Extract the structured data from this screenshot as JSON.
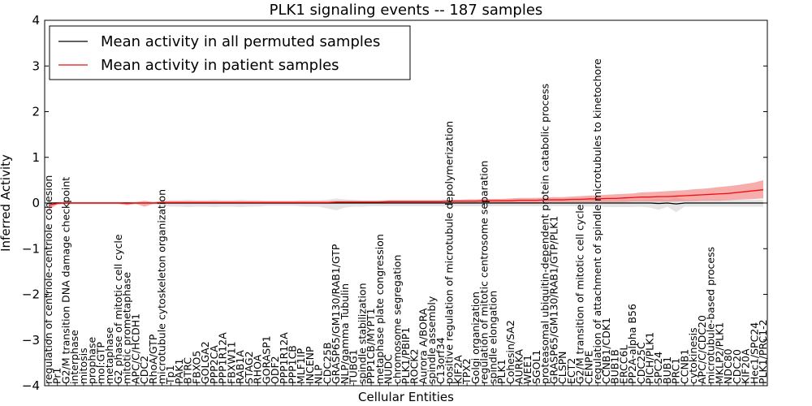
{
  "chart_data": {
    "type": "line",
    "title": "PLK1 signaling events -- 187 samples",
    "xlabel": "Cellular Entities",
    "ylabel": "Inferred Activity",
    "ylim": [
      -4,
      4
    ],
    "yticks": [
      -4,
      -3,
      -2,
      -1,
      0,
      1,
      2,
      3,
      4
    ],
    "legend_position": "top-left",
    "categories": [
      "regulation of centriole-centriole cohesion",
      "Pr1",
      "G2/M transition DNA damage checkpoint",
      "interphase",
      "mitosis",
      "prophase",
      "mol:GTP",
      "metaphase",
      "G2 phase of mitotic cell cycle",
      "mitotic prometaphase",
      "APC/C/HCDH1",
      "CDC2",
      "RhoA/GTP",
      "microtubule cytoskeleton organization",
      "Tp1",
      "PAK1",
      "BTRC",
      "FBXO5",
      "GOLGA2",
      "PPP2CA",
      "PPP1R12A",
      "FBXW11",
      "RAB1A",
      "STAG2",
      "RHOA",
      "GORASP1",
      "ODF2",
      "PPP1R12A",
      "PPP1CB",
      "MLF1IP",
      "INCENP",
      "NLP",
      "CDC25B",
      "GRASP65/GM130/RAB1/GTP",
      "NLP/gamma Tubulin",
      "TUBG1",
      "spindle stabilization",
      "PPP1CB/MYPT1",
      "metaphase plate congression",
      "NUDC",
      "chromosome segregation",
      "PLK1/PBIP1",
      "ROCK2",
      "Aurora A/BORA",
      "spindle assembly",
      "C13orf34",
      "positive regulation of microtubule depolymerization",
      "KIF2A",
      "TPX2",
      "Golgi organization",
      "regulation of mitotic centrosome separation",
      "spindle elongation",
      "PLK1",
      "Cohesin/SA2",
      "AURKA",
      "WEE1",
      "SGOL1",
      "proteasomal ubiquitin-dependent protein catabolic process",
      "GRASP65/GM130/RAB1/GTP/PLK1",
      "CLSPN",
      "ECT2",
      "G2/M transition of mitotic cell cycle",
      "CENPE",
      "regulation of attachment of spindle microtubules to kinetochore",
      "CCNB1/CDK1",
      "BUB1B",
      "ERCC6L",
      "PP2A-alpha B56",
      "CDC25C",
      "PICH/PLK1",
      "SPC24",
      "BUB1",
      "PRC1",
      "CCNB1",
      "cytokinesis",
      "APC/C/CDC20",
      "microtubule-based process",
      "MKLP2/PLK1",
      "NDC80",
      "CDC20",
      "KIF20A",
      "Hec1/SPC24",
      "PLK1/PRC1-2"
    ],
    "series": [
      {
        "name": "Mean activity in all permuted samples",
        "color": "#000000",
        "values": [
          0.0,
          0.0,
          0.0,
          0.0,
          0.0,
          0.0,
          0.0,
          0.0,
          0.0,
          0.0,
          0.0,
          0.0,
          0.0,
          0.0,
          0.0,
          0.0,
          0.0,
          0.0,
          0.0,
          0.0,
          0.0,
          0.0,
          0.0,
          0.0,
          0.0,
          0.0,
          0.0,
          0.0,
          0.0,
          0.0,
          0.0,
          0.0,
          0.0,
          0.0,
          0.0,
          0.0,
          0.0,
          0.0,
          0.0,
          0.0,
          0.0,
          0.0,
          0.0,
          0.0,
          0.0,
          0.0,
          0.0,
          0.0,
          0.0,
          0.0,
          0.0,
          0.0,
          0.0,
          0.0,
          0.0,
          0.0,
          0.0,
          0.0,
          0.0,
          0.0,
          0.0,
          0.0,
          0.0,
          0.0,
          0.0,
          0.0,
          0.0,
          0.0,
          0.0,
          0.0,
          -0.01,
          0.0,
          -0.02,
          0.0,
          0.0,
          0.0,
          0.0,
          0.0,
          0.0,
          0.0,
          0.0,
          0.0,
          0.0
        ],
        "band_upper": [
          0.02,
          0.02,
          0.02,
          0.02,
          0.02,
          0.02,
          0.02,
          0.02,
          0.02,
          0.02,
          0.02,
          0.02,
          0.02,
          0.05,
          0.06,
          0.06,
          0.07,
          0.06,
          0.06,
          0.07,
          0.06,
          0.06,
          0.07,
          0.06,
          0.06,
          0.05,
          0.05,
          0.05,
          0.05,
          0.06,
          0.06,
          0.06,
          0.07,
          0.1,
          0.08,
          0.07,
          0.06,
          0.06,
          0.06,
          0.06,
          0.06,
          0.06,
          0.06,
          0.06,
          0.06,
          0.06,
          0.06,
          0.06,
          0.06,
          0.06,
          0.06,
          0.06,
          0.06,
          0.06,
          0.06,
          0.06,
          0.06,
          0.07,
          0.07,
          0.07,
          0.07,
          0.07,
          0.08,
          0.07,
          0.08,
          0.08,
          0.08,
          0.08,
          0.07,
          0.08,
          0.1,
          0.07,
          0.12,
          0.07,
          0.07,
          0.07,
          0.07,
          0.07,
          0.07,
          0.07,
          0.07,
          0.07,
          0.07
        ],
        "band_lower": [
          -0.02,
          -0.02,
          -0.02,
          -0.02,
          -0.02,
          -0.02,
          -0.02,
          -0.02,
          -0.02,
          -0.02,
          -0.02,
          -0.02,
          -0.02,
          -0.05,
          -0.08,
          -0.08,
          -0.09,
          -0.08,
          -0.08,
          -0.09,
          -0.08,
          -0.08,
          -0.09,
          -0.08,
          -0.08,
          -0.06,
          -0.06,
          -0.06,
          -0.06,
          -0.07,
          -0.08,
          -0.08,
          -0.12,
          -0.16,
          -0.1,
          -0.08,
          -0.08,
          -0.07,
          -0.07,
          -0.07,
          -0.07,
          -0.07,
          -0.07,
          -0.07,
          -0.07,
          -0.07,
          -0.07,
          -0.07,
          -0.07,
          -0.07,
          -0.07,
          -0.07,
          -0.07,
          -0.07,
          -0.07,
          -0.07,
          -0.07,
          -0.07,
          -0.07,
          -0.07,
          -0.07,
          -0.07,
          -0.08,
          -0.07,
          -0.09,
          -0.09,
          -0.09,
          -0.09,
          -0.08,
          -0.1,
          -0.15,
          -0.08,
          -0.2,
          -0.08,
          -0.08,
          -0.08,
          -0.08,
          -0.08,
          -0.08,
          -0.08,
          -0.08,
          -0.08,
          -0.08
        ]
      },
      {
        "name": "Mean activity in patient samples",
        "color": "#ee1111",
        "values": [
          -0.05,
          -0.01,
          0.0,
          0.0,
          0.0,
          0.0,
          0.0,
          0.0,
          0.0,
          -0.01,
          0.0,
          0.0,
          0.0,
          0.01,
          0.01,
          0.01,
          0.01,
          0.01,
          0.01,
          0.01,
          0.01,
          0.01,
          0.01,
          0.01,
          0.01,
          0.01,
          0.01,
          0.01,
          0.01,
          0.01,
          0.01,
          0.01,
          0.01,
          0.02,
          0.02,
          0.02,
          0.02,
          0.02,
          0.02,
          0.03,
          0.03,
          0.03,
          0.03,
          0.03,
          0.03,
          0.03,
          0.04,
          0.04,
          0.04,
          0.04,
          0.05,
          0.05,
          0.05,
          0.05,
          0.06,
          0.06,
          0.06,
          0.07,
          0.07,
          0.07,
          0.08,
          0.08,
          0.09,
          0.09,
          0.1,
          0.1,
          0.11,
          0.12,
          0.13,
          0.13,
          0.14,
          0.14,
          0.15,
          0.16,
          0.17,
          0.18,
          0.19,
          0.2,
          0.21,
          0.23,
          0.25,
          0.27,
          0.29
        ],
        "band_upper": [
          0.0,
          0.02,
          0.02,
          0.02,
          0.02,
          0.02,
          0.02,
          0.02,
          0.02,
          0.02,
          0.02,
          0.05,
          0.02,
          0.04,
          0.04,
          0.04,
          0.04,
          0.04,
          0.04,
          0.04,
          0.04,
          0.04,
          0.04,
          0.04,
          0.04,
          0.04,
          0.04,
          0.04,
          0.04,
          0.04,
          0.04,
          0.04,
          0.04,
          0.05,
          0.05,
          0.05,
          0.05,
          0.05,
          0.05,
          0.06,
          0.06,
          0.06,
          0.06,
          0.06,
          0.06,
          0.06,
          0.07,
          0.07,
          0.08,
          0.08,
          0.09,
          0.09,
          0.09,
          0.1,
          0.11,
          0.11,
          0.11,
          0.12,
          0.13,
          0.13,
          0.14,
          0.15,
          0.16,
          0.17,
          0.18,
          0.19,
          0.2,
          0.21,
          0.23,
          0.24,
          0.25,
          0.26,
          0.27,
          0.28,
          0.3,
          0.31,
          0.33,
          0.35,
          0.37,
          0.39,
          0.42,
          0.45,
          0.5
        ],
        "band_lower": [
          -0.15,
          -0.03,
          -0.02,
          -0.02,
          -0.02,
          -0.02,
          -0.02,
          -0.02,
          -0.02,
          -0.05,
          -0.02,
          -0.08,
          -0.02,
          -0.02,
          -0.02,
          -0.02,
          -0.02,
          -0.02,
          -0.02,
          -0.02,
          -0.02,
          -0.02,
          -0.02,
          -0.02,
          -0.02,
          -0.02,
          -0.02,
          -0.02,
          -0.02,
          -0.02,
          -0.02,
          -0.02,
          -0.02,
          -0.01,
          -0.01,
          -0.01,
          -0.01,
          -0.01,
          -0.01,
          0.0,
          0.0,
          0.0,
          0.0,
          0.0,
          0.0,
          0.0,
          0.01,
          0.01,
          0.01,
          0.01,
          0.01,
          0.01,
          0.01,
          0.01,
          0.01,
          0.01,
          0.01,
          0.02,
          0.02,
          0.02,
          0.02,
          0.02,
          0.02,
          0.02,
          0.02,
          0.02,
          0.02,
          0.03,
          0.03,
          0.03,
          0.03,
          0.03,
          0.03,
          0.04,
          0.04,
          0.05,
          0.05,
          0.05,
          0.06,
          0.07,
          0.08,
          0.09,
          0.1
        ]
      }
    ]
  }
}
